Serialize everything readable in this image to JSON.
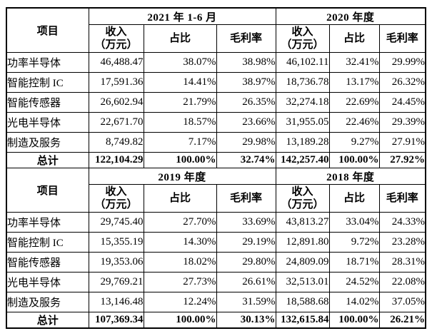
{
  "page": {
    "background_color": "#ffffff",
    "border_color": "#000000",
    "text_color": "#000000"
  },
  "table": {
    "item_header": "项目",
    "period_sub_headers": [
      "收入\n（万元）",
      "占比",
      "毛利率"
    ],
    "sections": [
      {
        "periods": [
          "2021 年 1-6 月",
          "2020 年度"
        ],
        "rows": [
          {
            "item": "功率半导体",
            "is_total": false,
            "cells": [
              "46,488.47",
              "38.07%",
              "38.98%",
              "46,102.11",
              "32.41%",
              "29.99%"
            ]
          },
          {
            "item": "智能控制 IC",
            "is_total": false,
            "cells": [
              "17,591.36",
              "14.41%",
              "38.97%",
              "18,736.78",
              "13.17%",
              "26.32%"
            ]
          },
          {
            "item": "智能传感器",
            "is_total": false,
            "cells": [
              "26,602.94",
              "21.79%",
              "26.35%",
              "32,274.18",
              "22.69%",
              "24.45%"
            ]
          },
          {
            "item": "光电半导体",
            "is_total": false,
            "cells": [
              "22,671.70",
              "18.57%",
              "23.66%",
              "31,955.05",
              "22.46%",
              "29.39%"
            ]
          },
          {
            "item": "制造及服务",
            "is_total": false,
            "cells": [
              "8,749.82",
              "7.17%",
              "29.98%",
              "13,189.28",
              "9.27%",
              "27.91%"
            ]
          },
          {
            "item": "总计",
            "is_total": true,
            "cells": [
              "122,104.29",
              "100.00%",
              "32.74%",
              "142,257.40",
              "100.00%",
              "27.92%"
            ]
          }
        ]
      },
      {
        "periods": [
          "2019 年度",
          "2018 年度"
        ],
        "rows": [
          {
            "item": "功率半导体",
            "is_total": false,
            "cells": [
              "29,745.40",
              "27.70%",
              "33.69%",
              "43,813.27",
              "33.04%",
              "24.33%"
            ]
          },
          {
            "item": "智能控制 IC",
            "is_total": false,
            "cells": [
              "15,355.19",
              "14.30%",
              "29.19%",
              "12,891.80",
              "9.72%",
              "23.28%"
            ]
          },
          {
            "item": "智能传感器",
            "is_total": false,
            "cells": [
              "19,353.06",
              "18.02%",
              "29.80%",
              "24,809.09",
              "18.71%",
              "28.31%"
            ]
          },
          {
            "item": "光电半导体",
            "is_total": false,
            "cells": [
              "29,769.21",
              "27.73%",
              "26.61%",
              "32,513.01",
              "24.52%",
              "22.08%"
            ]
          },
          {
            "item": "制造及服务",
            "is_total": false,
            "cells": [
              "13,146.48",
              "12.24%",
              "31.59%",
              "18,588.68",
              "14.02%",
              "37.05%"
            ]
          },
          {
            "item": "总计",
            "is_total": true,
            "cells": [
              "107,369.34",
              "100.00%",
              "30.13%",
              "132,615.84",
              "100.00%",
              "26.21%"
            ]
          }
        ]
      }
    ]
  }
}
